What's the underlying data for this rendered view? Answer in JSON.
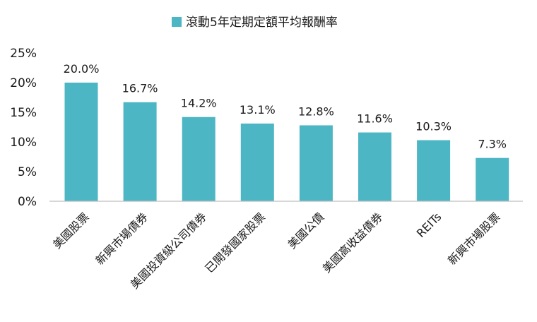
{
  "chart_data": {
    "type": "bar",
    "title": "",
    "xlabel": "",
    "ylabel": "",
    "categories": [
      "美國股票",
      "新興市場債券",
      "美國投資級公司債券",
      "已開發國家股票",
      "美國公債",
      "美國高收益債券",
      "REITs",
      "新興市場股票"
    ],
    "series": [
      {
        "name": "滾動5年定期定額平均報酬率",
        "values": [
          20.0,
          16.7,
          14.2,
          13.1,
          12.8,
          11.6,
          10.3,
          7.3
        ],
        "data_labels": [
          "20.0%",
          "16.7%",
          "14.2%",
          "13.1%",
          "12.8%",
          "11.6%",
          "10.3%",
          "7.3%"
        ]
      }
    ],
    "ylim": [
      0,
      25
    ],
    "yticks": [
      0,
      5,
      10,
      15,
      20,
      25
    ],
    "ytick_labels": [
      "0%",
      "5%",
      "10%",
      "15%",
      "20%",
      "25%"
    ],
    "grid": false,
    "legend_position": "top-center",
    "colors": {
      "bar": "#4db6c4",
      "axis": "#bfbfbf",
      "text": "#1a1a1a"
    }
  }
}
